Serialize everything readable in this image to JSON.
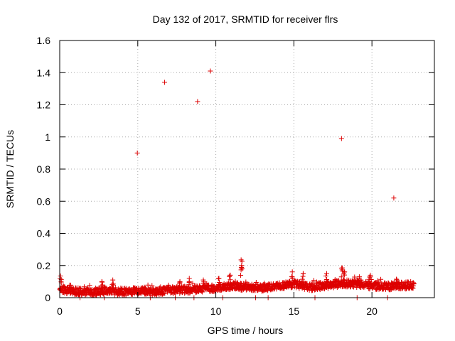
{
  "chart_data": {
    "type": "scatter",
    "title": "Day 132 of 2017, SRMTID for receiver flrs",
    "xlabel": "GPS time / hours",
    "ylabel": "SRMTID / TECUs",
    "xlim": [
      0,
      24
    ],
    "ylim": [
      0,
      1.6
    ],
    "x_ticks": [
      0,
      5,
      10,
      15,
      20
    ],
    "x_tick_labels": [
      "0",
      "5",
      "10",
      "15",
      "20"
    ],
    "y_ticks": [
      0,
      0.2,
      0.4,
      0.6,
      0.8,
      1,
      1.2,
      1.4,
      1.6
    ],
    "y_tick_labels": [
      "0",
      "0.2",
      "0.4",
      "0.6",
      "0.8",
      "1",
      "1.2",
      "1.4",
      "1.6"
    ],
    "grid": true,
    "marker": "plus",
    "color": "#dd0000",
    "series": [
      {
        "name": "SRMTID",
        "outliers": [
          {
            "x": 4.97,
            "y": 0.9
          },
          {
            "x": 6.72,
            "y": 1.34
          },
          {
            "x": 8.83,
            "y": 1.22
          },
          {
            "x": 9.65,
            "y": 1.41
          },
          {
            "x": 18.05,
            "y": 0.99
          },
          {
            "x": 21.4,
            "y": 0.62
          }
        ],
        "peaks": [
          {
            "x": 0.05,
            "y": 0.135
          },
          {
            "x": 2.7,
            "y": 0.1
          },
          {
            "x": 3.4,
            "y": 0.11
          },
          {
            "x": 7.7,
            "y": 0.1
          },
          {
            "x": 8.3,
            "y": 0.12
          },
          {
            "x": 9.2,
            "y": 0.11
          },
          {
            "x": 10.2,
            "y": 0.12
          },
          {
            "x": 10.9,
            "y": 0.14
          },
          {
            "x": 11.62,
            "y": 0.235
          },
          {
            "x": 11.65,
            "y": 0.2
          },
          {
            "x": 14.9,
            "y": 0.16
          },
          {
            "x": 15.6,
            "y": 0.15
          },
          {
            "x": 17.1,
            "y": 0.15
          },
          {
            "x": 18.1,
            "y": 0.185
          },
          {
            "x": 18.25,
            "y": 0.16
          },
          {
            "x": 19.2,
            "y": 0.13
          },
          {
            "x": 19.9,
            "y": 0.14
          },
          {
            "x": 21.6,
            "y": 0.11
          }
        ],
        "baseline": {
          "x": [
            0,
            0.5,
            1,
            2,
            3,
            4,
            5,
            6,
            7,
            8,
            9,
            10,
            11,
            12,
            13,
            14,
            15,
            16,
            17,
            18,
            19,
            20,
            21,
            22,
            22.7
          ],
          "y": [
            0.06,
            0.045,
            0.04,
            0.035,
            0.045,
            0.035,
            0.045,
            0.035,
            0.045,
            0.05,
            0.055,
            0.06,
            0.075,
            0.065,
            0.06,
            0.07,
            0.085,
            0.065,
            0.075,
            0.09,
            0.085,
            0.075,
            0.07,
            0.075,
            0.08
          ],
          "x_range": [
            0,
            22.7
          ]
        },
        "zero_points": [
          1.3,
          2.85,
          5.8,
          7.4,
          8.6,
          10.45,
          12.55,
          13.35,
          16.35,
          19.05,
          21.0
        ]
      }
    ]
  }
}
